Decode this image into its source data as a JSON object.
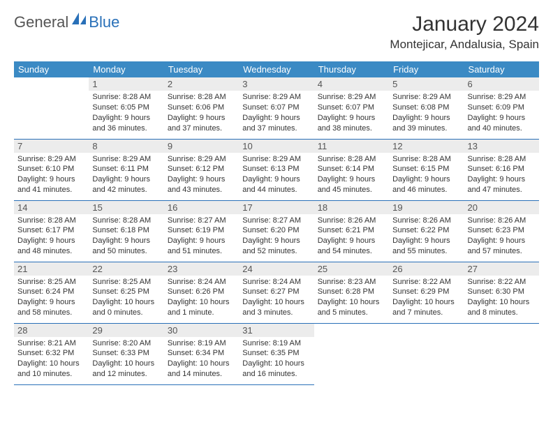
{
  "logo": {
    "general": "General",
    "blue": "Blue"
  },
  "title": "January 2024",
  "location": "Montejicar, Andalusia, Spain",
  "colors": {
    "header_bg": "#3b8ac4",
    "border": "#2970b8",
    "daynum_bg": "#ececec",
    "text": "#333333"
  },
  "weekdays": [
    "Sunday",
    "Monday",
    "Tuesday",
    "Wednesday",
    "Thursday",
    "Friday",
    "Saturday"
  ],
  "start_offset": 1,
  "days": [
    {
      "n": 1,
      "sunrise": "8:28 AM",
      "sunset": "6:05 PM",
      "daylight": "9 hours and 36 minutes."
    },
    {
      "n": 2,
      "sunrise": "8:28 AM",
      "sunset": "6:06 PM",
      "daylight": "9 hours and 37 minutes."
    },
    {
      "n": 3,
      "sunrise": "8:29 AM",
      "sunset": "6:07 PM",
      "daylight": "9 hours and 37 minutes."
    },
    {
      "n": 4,
      "sunrise": "8:29 AM",
      "sunset": "6:07 PM",
      "daylight": "9 hours and 38 minutes."
    },
    {
      "n": 5,
      "sunrise": "8:29 AM",
      "sunset": "6:08 PM",
      "daylight": "9 hours and 39 minutes."
    },
    {
      "n": 6,
      "sunrise": "8:29 AM",
      "sunset": "6:09 PM",
      "daylight": "9 hours and 40 minutes."
    },
    {
      "n": 7,
      "sunrise": "8:29 AM",
      "sunset": "6:10 PM",
      "daylight": "9 hours and 41 minutes."
    },
    {
      "n": 8,
      "sunrise": "8:29 AM",
      "sunset": "6:11 PM",
      "daylight": "9 hours and 42 minutes."
    },
    {
      "n": 9,
      "sunrise": "8:29 AM",
      "sunset": "6:12 PM",
      "daylight": "9 hours and 43 minutes."
    },
    {
      "n": 10,
      "sunrise": "8:29 AM",
      "sunset": "6:13 PM",
      "daylight": "9 hours and 44 minutes."
    },
    {
      "n": 11,
      "sunrise": "8:28 AM",
      "sunset": "6:14 PM",
      "daylight": "9 hours and 45 minutes."
    },
    {
      "n": 12,
      "sunrise": "8:28 AM",
      "sunset": "6:15 PM",
      "daylight": "9 hours and 46 minutes."
    },
    {
      "n": 13,
      "sunrise": "8:28 AM",
      "sunset": "6:16 PM",
      "daylight": "9 hours and 47 minutes."
    },
    {
      "n": 14,
      "sunrise": "8:28 AM",
      "sunset": "6:17 PM",
      "daylight": "9 hours and 48 minutes."
    },
    {
      "n": 15,
      "sunrise": "8:28 AM",
      "sunset": "6:18 PM",
      "daylight": "9 hours and 50 minutes."
    },
    {
      "n": 16,
      "sunrise": "8:27 AM",
      "sunset": "6:19 PM",
      "daylight": "9 hours and 51 minutes."
    },
    {
      "n": 17,
      "sunrise": "8:27 AM",
      "sunset": "6:20 PM",
      "daylight": "9 hours and 52 minutes."
    },
    {
      "n": 18,
      "sunrise": "8:26 AM",
      "sunset": "6:21 PM",
      "daylight": "9 hours and 54 minutes."
    },
    {
      "n": 19,
      "sunrise": "8:26 AM",
      "sunset": "6:22 PM",
      "daylight": "9 hours and 55 minutes."
    },
    {
      "n": 20,
      "sunrise": "8:26 AM",
      "sunset": "6:23 PM",
      "daylight": "9 hours and 57 minutes."
    },
    {
      "n": 21,
      "sunrise": "8:25 AM",
      "sunset": "6:24 PM",
      "daylight": "9 hours and 58 minutes."
    },
    {
      "n": 22,
      "sunrise": "8:25 AM",
      "sunset": "6:25 PM",
      "daylight": "10 hours and 0 minutes."
    },
    {
      "n": 23,
      "sunrise": "8:24 AM",
      "sunset": "6:26 PM",
      "daylight": "10 hours and 1 minute."
    },
    {
      "n": 24,
      "sunrise": "8:24 AM",
      "sunset": "6:27 PM",
      "daylight": "10 hours and 3 minutes."
    },
    {
      "n": 25,
      "sunrise": "8:23 AM",
      "sunset": "6:28 PM",
      "daylight": "10 hours and 5 minutes."
    },
    {
      "n": 26,
      "sunrise": "8:22 AM",
      "sunset": "6:29 PM",
      "daylight": "10 hours and 7 minutes."
    },
    {
      "n": 27,
      "sunrise": "8:22 AM",
      "sunset": "6:30 PM",
      "daylight": "10 hours and 8 minutes."
    },
    {
      "n": 28,
      "sunrise": "8:21 AM",
      "sunset": "6:32 PM",
      "daylight": "10 hours and 10 minutes."
    },
    {
      "n": 29,
      "sunrise": "8:20 AM",
      "sunset": "6:33 PM",
      "daylight": "10 hours and 12 minutes."
    },
    {
      "n": 30,
      "sunrise": "8:19 AM",
      "sunset": "6:34 PM",
      "daylight": "10 hours and 14 minutes."
    },
    {
      "n": 31,
      "sunrise": "8:19 AM",
      "sunset": "6:35 PM",
      "daylight": "10 hours and 16 minutes."
    }
  ]
}
